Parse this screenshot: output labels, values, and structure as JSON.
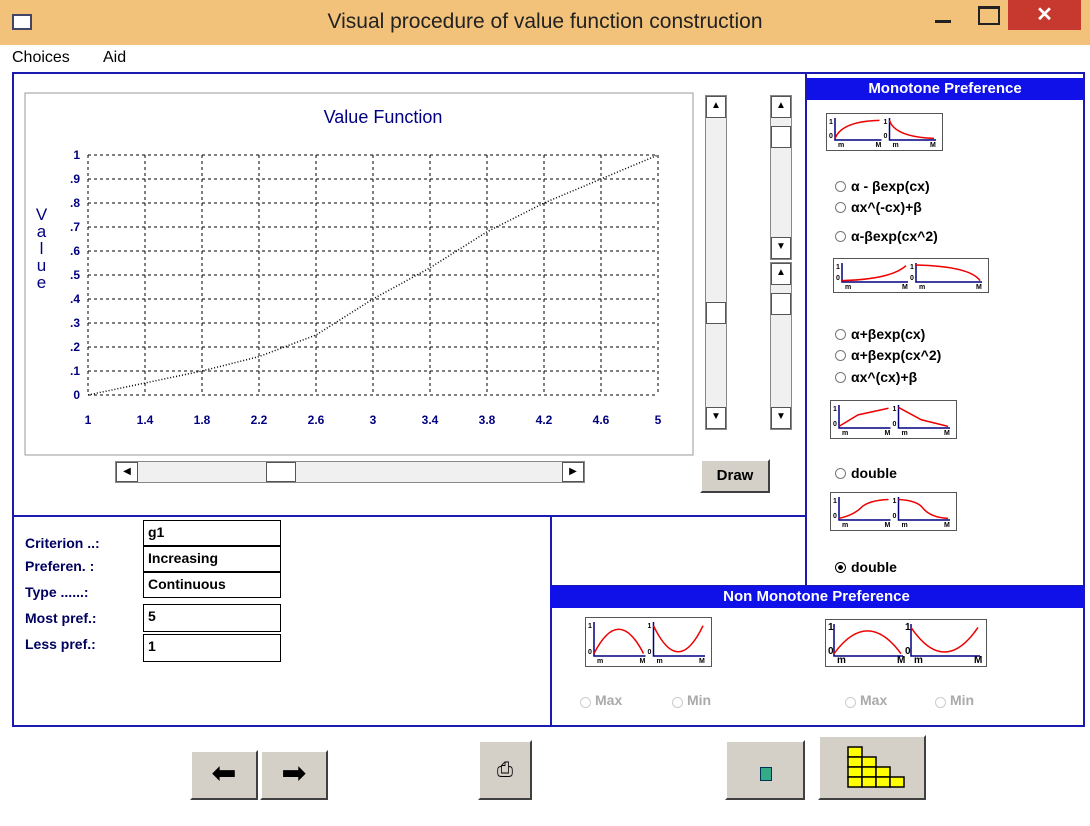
{
  "window": {
    "title": "Visual procedure of value function construction"
  },
  "menu": [
    "Choices",
    "Aid"
  ],
  "chart": {
    "type": "line",
    "title": "Value Function",
    "y_label": "Value",
    "x": [
      1,
      1.4,
      1.8,
      2.2,
      2.6,
      3,
      3.4,
      3.8,
      4.2,
      4.6,
      5
    ],
    "values": [
      0,
      0.05,
      0.1,
      0.16,
      0.25,
      0.4,
      0.53,
      0.68,
      0.8,
      0.9,
      1
    ],
    "xlim": [
      1,
      5
    ],
    "ylim": [
      0,
      1
    ],
    "xticks": [
      1,
      1.4,
      1.8,
      2.2,
      2.6,
      3,
      3.4,
      3.8,
      4.2,
      4.6,
      5
    ],
    "yticks": [
      0,
      {
        "value": 0.1,
        "label": ".1"
      },
      {
        "value": 0.2,
        "label": ".2"
      },
      {
        "value": 0.3,
        "label": ".3"
      },
      {
        "value": 0.4,
        "label": ".4"
      },
      {
        "value": 0.5,
        "label": ".5"
      },
      {
        "value": 0.6,
        "label": ".6"
      },
      {
        "value": 0.7,
        "label": ".7"
      },
      {
        "value": 0.8,
        "label": ".8"
      },
      {
        "value": 0.9,
        "label": ".9"
      },
      1
    ],
    "grid": true,
    "color": "#000000"
  },
  "buttons": {
    "draw": "Draw"
  },
  "criterion": {
    "labels": [
      "Criterion ..:",
      "Preferen. :",
      "Type ......:",
      "Most pref.:",
      "Less pref.:"
    ],
    "values": [
      "g1",
      "Increasing",
      "Continuous",
      "5",
      "1"
    ]
  },
  "monotone": {
    "title": "Monotone Preference",
    "options": [
      "α - βexp(cx)",
      "αx^(-cx)+β",
      "α-βexp(cx^2)",
      "α+βexp(cx)",
      "α+βexp(cx^2)",
      "αx^(cx)+β",
      "double",
      "double"
    ],
    "selected": 7
  },
  "non_monotone": {
    "title": "Non Monotone Preference",
    "options": [
      "Max",
      "Min",
      "Max",
      "Min"
    ]
  },
  "thumb_labels": {
    "one": "1",
    "zero": "0",
    "min": "m",
    "max": "M"
  }
}
